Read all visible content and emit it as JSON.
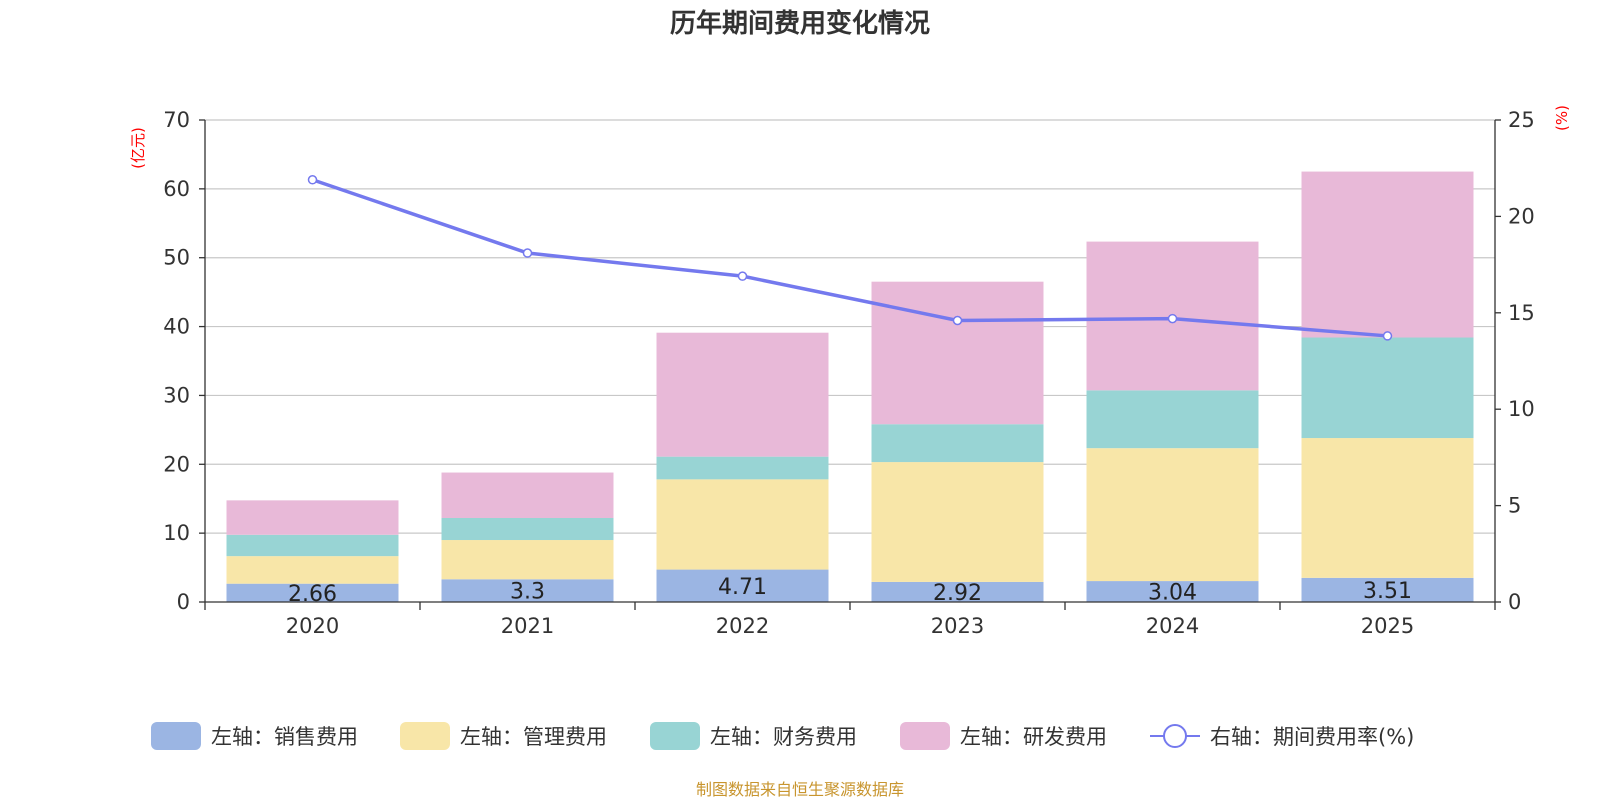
{
  "chart_data": {
    "type": "bar",
    "stacked": true,
    "title": "历年期间费用变化情况",
    "categories": [
      "2020",
      "2021",
      "2022",
      "2023",
      "2024",
      "2025"
    ],
    "left_axis": {
      "unit": "(亿元)",
      "ylim": [
        0,
        70
      ],
      "ticks": [
        "0",
        "10",
        "20",
        "30",
        "40",
        "50",
        "60",
        "70"
      ]
    },
    "right_axis": {
      "unit": "(%)",
      "ylim": [
        0,
        25
      ],
      "ticks": [
        "0",
        "5",
        "10",
        "15",
        "20",
        "25"
      ]
    },
    "series": [
      {
        "name": "左轴：销售费用",
        "type": "bar",
        "axis": "left",
        "color": "#9bb5e3",
        "values": [
          2.66,
          3.3,
          4.71,
          2.92,
          3.04,
          3.51
        ],
        "labels": [
          "2.66",
          "3.3",
          "4.71",
          "2.92",
          "3.04",
          "3.51"
        ]
      },
      {
        "name": "左轴：管理费用",
        "type": "bar",
        "axis": "left",
        "color": "#f8e6a8",
        "values": [
          4.0,
          5.7,
          13.1,
          17.4,
          19.3,
          20.3
        ]
      },
      {
        "name": "左轴：财务费用",
        "type": "bar",
        "axis": "left",
        "color": "#98d4d4",
        "values": [
          3.1,
          3.2,
          3.3,
          5.5,
          8.4,
          14.6
        ]
      },
      {
        "name": "左轴：研发费用",
        "type": "bar",
        "axis": "left",
        "color": "#e8b9d8",
        "values": [
          5.0,
          6.6,
          18.0,
          20.7,
          21.6,
          24.1
        ]
      },
      {
        "name": "右轴：期间费用率(%)",
        "type": "line",
        "axis": "right",
        "color": "#7479ee",
        "values": [
          21.9,
          18.1,
          16.9,
          14.6,
          14.7,
          13.8
        ]
      }
    ],
    "grid": true,
    "legend_position": "bottom"
  },
  "footer": "制图数据来自恒生聚源数据库"
}
